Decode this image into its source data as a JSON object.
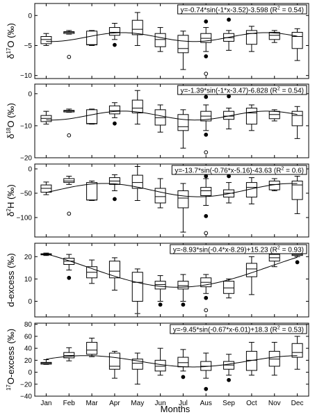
{
  "chart_data": [
    {
      "type": "box",
      "ylabel_pre": "δ",
      "ylabel_sup": "17",
      "ylabel_post": "O (‰)",
      "ylim": [
        -10.5,
        2
      ],
      "yticks": [
        0,
        -5,
        -10
      ],
      "equation": "y=-0.74*sin(-1*x-3.52)-3.598 (R",
      "equation_r2": "= 0.54)",
      "fit": {
        "a": -0.74,
        "b": -1,
        "c": -3.52,
        "d": -3.598
      },
      "boxes": [
        {
          "month": "Jan",
          "whislo": -5.0,
          "q1": -4.7,
          "med": -4.0,
          "q3": -3.5,
          "whishi": -3.0
        },
        {
          "month": "Feb",
          "whislo": -3.1,
          "q1": -3.0,
          "med": -2.8,
          "q3": -2.7,
          "whishi": -2.5
        },
        {
          "month": "Mar",
          "whislo": -5.0,
          "q1": -4.9,
          "med": -4.85,
          "q3": -2.6,
          "whishi": -2.5
        },
        {
          "month": "Apr",
          "whislo": -4.0,
          "q1": -3.3,
          "med": -2.8,
          "q3": -2.0,
          "whishi": -1.3
        },
        {
          "month": "May",
          "whislo": -5.0,
          "q1": -3.2,
          "med": -2.3,
          "q3": -0.8,
          "whishi": 0.5
        },
        {
          "month": "Jun",
          "whislo": -6.0,
          "q1": -5.2,
          "med": -4.0,
          "q3": -3.0,
          "whishi": -2.0
        },
        {
          "month": "Jul",
          "whislo": -9.0,
          "q1": -6.2,
          "med": -5.5,
          "q3": -3.3,
          "whishi": -2.6
        },
        {
          "month": "Aus",
          "whislo": -6.0,
          "q1": -4.5,
          "med": -3.8,
          "q3": -3.0,
          "whishi": -2.0
        },
        {
          "month": "Sep",
          "whislo": -5.8,
          "q1": -4.3,
          "med": -3.7,
          "q3": -3.0,
          "whishi": -2.5
        },
        {
          "month": "Oct",
          "whislo": -6.0,
          "q1": -4.8,
          "med": -3.0,
          "q3": -2.5,
          "whishi": -1.8
        },
        {
          "month": "Nov",
          "whislo": -4.5,
          "q1": -4.0,
          "med": -3.3,
          "q3": -2.8,
          "whishi": -2.5
        },
        {
          "month": "Dec",
          "whislo": -7.5,
          "q1": -5.5,
          "med": -3.5,
          "q3": -2.8,
          "whishi": -2.2
        }
      ],
      "outliers": [
        {
          "month": "Feb",
          "value": -6.9,
          "filled": false
        },
        {
          "month": "Apr",
          "value": -4.9,
          "filled": true
        },
        {
          "month": "Aus",
          "value": -1.0,
          "filled": true
        },
        {
          "month": "Aus",
          "value": -6.8,
          "filled": true
        },
        {
          "month": "Aus",
          "value": -9.7,
          "filled": false
        },
        {
          "month": "Sep",
          "value": -0.7,
          "filled": true
        }
      ]
    },
    {
      "type": "box",
      "ylabel_pre": "δ",
      "ylabel_sup": "18",
      "ylabel_post": "O (‰)",
      "ylim": [
        -20,
        3
      ],
      "yticks": [
        0,
        -10,
        -20
      ],
      "equation": "y=-1.39*sin(-1*x-3.47)-6.828 (R",
      "equation_r2": "= 0.54)",
      "fit": {
        "a": -1.39,
        "b": -1,
        "c": -3.47,
        "d": -6.828
      },
      "boxes": [
        {
          "month": "Jan",
          "whislo": -9.5,
          "q1": -8.7,
          "med": -7.7,
          "q3": -6.8,
          "whishi": -5.5
        },
        {
          "month": "Feb",
          "whislo": -5.8,
          "q1": -5.7,
          "med": -5.4,
          "q3": -5.2,
          "whishi": -4.8
        },
        {
          "month": "Mar",
          "whislo": -9.5,
          "q1": -9.4,
          "med": -9.3,
          "q3": -5.0,
          "whishi": -4.8
        },
        {
          "month": "Apr",
          "whislo": -7.5,
          "q1": -6.3,
          "med": -5.3,
          "q3": -3.8,
          "whishi": -2.8
        },
        {
          "month": "May",
          "whislo": -9.5,
          "q1": -6.0,
          "med": -4.5,
          "q3": -2.0,
          "whishi": 1.0
        },
        {
          "month": "Jun",
          "whislo": -12.0,
          "q1": -9.8,
          "med": -7.5,
          "q3": -5.0,
          "whishi": -3.5
        },
        {
          "month": "Jul",
          "whislo": -17.0,
          "q1": -11.5,
          "med": -10.3,
          "q3": -6.5,
          "whishi": -5.0
        },
        {
          "month": "Aus",
          "whislo": -11.5,
          "q1": -8.5,
          "med": -7.0,
          "q3": -5.5,
          "whishi": -3.5
        },
        {
          "month": "Sep",
          "whislo": -11.0,
          "q1": -8.0,
          "med": -7.0,
          "q3": -5.5,
          "whishi": -4.5
        },
        {
          "month": "Oct",
          "whislo": -11.5,
          "q1": -9.5,
          "med": -6.0,
          "q3": -4.5,
          "whishi": -3.5
        },
        {
          "month": "Nov",
          "whislo": -8.5,
          "q1": -7.8,
          "med": -6.5,
          "q3": -5.5,
          "whishi": -5.0
        },
        {
          "month": "Dec",
          "whislo": -14.0,
          "q1": -10.0,
          "med": -6.8,
          "q3": -5.5,
          "whishi": -4.0
        }
      ],
      "outliers": [
        {
          "month": "Feb",
          "value": -13.0,
          "filled": false
        },
        {
          "month": "Apr",
          "value": -9.3,
          "filled": true
        },
        {
          "month": "Aus",
          "value": -1.0,
          "filled": true
        },
        {
          "month": "Aus",
          "value": -12.8,
          "filled": true
        },
        {
          "month": "Aus",
          "value": -18.3,
          "filled": false
        },
        {
          "month": "Sep",
          "value": -0.8,
          "filled": true
        }
      ]
    },
    {
      "type": "box",
      "ylabel_pre": "δ",
      "ylabel_sup": "2",
      "ylabel_post": "H (‰)",
      "ylim": [
        -140,
        10
      ],
      "yticks": [
        0,
        -50,
        -100
      ],
      "equation": "y=-13.7*sin(-0.76*x-5.16)-43.63 (R",
      "equation_r2": "= 0.6)",
      "fit": {
        "a": -13.7,
        "b": -0.76,
        "c": -5.16,
        "d": -43.63
      },
      "boxes": [
        {
          "month": "Jan",
          "whislo": -53.0,
          "q1": -48.0,
          "med": -40.0,
          "q3": -33.0,
          "whishi": -27.0
        },
        {
          "month": "Feb",
          "whislo": -32.0,
          "q1": -28.0,
          "med": -25.0,
          "q3": -20.0,
          "whishi": -15.0
        },
        {
          "month": "Mar",
          "whislo": -65.0,
          "q1": -64.0,
          "med": -64.0,
          "q3": -28.0,
          "whishi": -25.0
        },
        {
          "month": "Apr",
          "whislo": -45.0,
          "q1": -32.0,
          "med": -25.0,
          "q3": -18.0,
          "whishi": -12.0
        },
        {
          "month": "May",
          "whislo": -65.0,
          "q1": -40.0,
          "med": -28.0,
          "q3": -13.0,
          "whishi": 5.0
        },
        {
          "month": "Jun",
          "whislo": -80.0,
          "q1": -70.0,
          "med": -57.0,
          "q3": -40.0,
          "whishi": -20.0
        },
        {
          "month": "Jul",
          "whislo": -130.0,
          "q1": -80.0,
          "med": -60.0,
          "q3": -45.0,
          "whishi": -30.0
        },
        {
          "month": "Aus",
          "whislo": -75.0,
          "q1": -55.0,
          "med": -45.0,
          "q3": -38.0,
          "whishi": -20.0
        },
        {
          "month": "Sep",
          "whislo": -70.0,
          "q1": -58.0,
          "med": -50.0,
          "q3": -43.0,
          "whishi": -28.0
        },
        {
          "month": "Oct",
          "whislo": -72.0,
          "q1": -58.0,
          "med": -38.0,
          "q3": -28.0,
          "whishi": -18.0
        },
        {
          "month": "Nov",
          "whislo": -45.0,
          "q1": -43.0,
          "med": -32.0,
          "q3": -25.0,
          "whishi": -20.0
        },
        {
          "month": "Dec",
          "whislo": -92.0,
          "q1": -63.0,
          "med": -33.0,
          "q3": -25.0,
          "whishi": -15.0
        }
      ],
      "outliers": [
        {
          "month": "Feb",
          "value": -92.0,
          "filled": false
        },
        {
          "month": "Apr",
          "value": -62.0,
          "filled": true
        },
        {
          "month": "Aus",
          "value": -15.0,
          "filled": true
        },
        {
          "month": "Aus",
          "value": -97.0,
          "filled": true
        },
        {
          "month": "Aus",
          "value": -132.0,
          "filled": false
        },
        {
          "month": "Sep",
          "value": -15.0,
          "filled": true
        }
      ]
    },
    {
      "type": "box",
      "ylabel_pre": "d-excess (‰)",
      "ylabel_sup": "",
      "ylabel_post": "",
      "ylim": [
        -7,
        26
      ],
      "yticks": [
        20,
        10,
        0
      ],
      "equation": "y=-8.93*sin(-0.4*x-8.29)+15.23 (R",
      "equation_r2": "= 0.93)",
      "fit": {
        "a": -8.93,
        "b": -0.4,
        "c": -8.29,
        "d": 15.23
      },
      "boxes": [
        {
          "month": "Jan",
          "whislo": 20.5,
          "q1": 20.8,
          "med": 21.0,
          "q3": 21.3,
          "whishi": 21.6
        },
        {
          "month": "Feb",
          "whislo": 14.0,
          "q1": 16.5,
          "med": 18.0,
          "q3": 19.3,
          "whishi": 21.0
        },
        {
          "month": "Mar",
          "whislo": 8.0,
          "q1": 10.5,
          "med": 13.0,
          "q3": 15.5,
          "whishi": 18.5
        },
        {
          "month": "Apr",
          "whislo": 5.0,
          "q1": 10.5,
          "med": 13.5,
          "q3": 18.0,
          "whishi": 19.5
        },
        {
          "month": "May",
          "whislo": -5.5,
          "q1": 0.0,
          "med": 8.5,
          "q3": 13.0,
          "whishi": 14.5
        },
        {
          "month": "Jun",
          "whislo": 0.0,
          "q1": 5.5,
          "med": 7.5,
          "q3": 9.0,
          "whishi": 11.5
        },
        {
          "month": "Jul",
          "whislo": 0.0,
          "q1": 5.5,
          "med": 7.0,
          "q3": 9.0,
          "whishi": 12.0
        },
        {
          "month": "Aus",
          "whislo": 3.5,
          "q1": 6.5,
          "med": 8.5,
          "q3": 10.5,
          "whishi": 12.0
        },
        {
          "month": "Sep",
          "whislo": 1.5,
          "q1": 3.5,
          "med": 6.0,
          "q3": 9.0,
          "whishi": 10.0
        },
        {
          "month": "Oct",
          "whislo": 3.0,
          "q1": 11.0,
          "med": 14.5,
          "q3": 17.0,
          "whishi": 20.0
        },
        {
          "month": "Nov",
          "whislo": 15.5,
          "q1": 18.0,
          "med": 19.5,
          "q3": 21.0,
          "whishi": 22.0
        },
        {
          "month": "Dec",
          "whislo": 20.0,
          "q1": 20.5,
          "med": 21.0,
          "q3": 21.5,
          "whishi": 22.0
        }
      ],
      "outliers": [
        {
          "month": "Feb",
          "value": 10.5,
          "filled": true
        },
        {
          "month": "Jun",
          "value": -1.5,
          "filled": true
        },
        {
          "month": "Jul",
          "value": -1.5,
          "filled": true
        },
        {
          "month": "Aus",
          "value": 1.5,
          "filled": true
        },
        {
          "month": "Aus",
          "value": -4.0,
          "filled": false
        },
        {
          "month": "Dec",
          "value": 17.5,
          "filled": true
        }
      ]
    },
    {
      "type": "box",
      "ylabel_pre": "",
      "ylabel_sup": "17",
      "ylabel_post": "O-excess (‰)",
      "ylim": [
        -40,
        82
      ],
      "yticks": [
        80,
        60,
        40,
        20,
        0,
        -20,
        -40
      ],
      "equation": "y=-9.45*sin(-0.67*x-6.01)+18.3 (R",
      "equation_r2": "= 0.53)",
      "fit": {
        "a": -9.45,
        "b": -0.67,
        "c": -6.01,
        "d": 18.3
      },
      "boxes": [
        {
          "month": "Jan",
          "whislo": 13.0,
          "q1": 13.5,
          "med": 15.0,
          "q3": 16.5,
          "whishi": 21.0
        },
        {
          "month": "Feb",
          "whislo": 19.0,
          "q1": 24.0,
          "med": 28.0,
          "q3": 33.0,
          "whishi": 41.0
        },
        {
          "month": "Mar",
          "whislo": 26.0,
          "q1": 30.0,
          "med": 37.0,
          "q3": 50.0,
          "whishi": 57.0
        },
        {
          "month": "Apr",
          "whislo": -10.0,
          "q1": 5.0,
          "med": 10.0,
          "q3": 32.0,
          "whishi": 35.0
        },
        {
          "month": "May",
          "whislo": -20.0,
          "q1": 5.0,
          "med": 15.0,
          "q3": 22.0,
          "whishi": 32.0
        },
        {
          "month": "Jun",
          "whislo": -5.0,
          "q1": 2.0,
          "med": 10.0,
          "q3": 20.0,
          "whishi": 40.0
        },
        {
          "month": "Jul",
          "whislo": 2.0,
          "q1": 9.0,
          "med": 16.0,
          "q3": 25.0,
          "whishi": 38.0
        },
        {
          "month": "Aus",
          "whislo": -10.0,
          "q1": 3.0,
          "med": 10.0,
          "q3": 18.0,
          "whishi": 32.0
        },
        {
          "month": "Sep",
          "whislo": -5.0,
          "q1": 5.0,
          "med": 12.0,
          "q3": 18.0,
          "whishi": 30.0
        },
        {
          "month": "Oct",
          "whislo": -5.0,
          "q1": 3.0,
          "med": 20.0,
          "q3": 35.0,
          "whishi": 50.0
        },
        {
          "month": "Nov",
          "whislo": -5.0,
          "q1": 10.0,
          "med": 22.0,
          "q3": 35.0,
          "whishi": 50.0
        },
        {
          "month": "Dec",
          "whislo": 5.0,
          "q1": 25.0,
          "med": 33.0,
          "q3": 48.0,
          "whishi": 60.0
        }
      ],
      "outliers": [
        {
          "month": "Jul",
          "value": -8.0,
          "filled": true
        },
        {
          "month": "Aus",
          "value": -28.0,
          "filled": true
        },
        {
          "month": "Sep",
          "value": -13.0,
          "filled": true
        }
      ]
    }
  ],
  "shared": {
    "months": [
      "Jan",
      "Feb",
      "Mar",
      "Apr",
      "May",
      "Jun",
      "Jul",
      "Aus",
      "Sep",
      "Oct",
      "Nov",
      "Dec"
    ],
    "xlabel": "Months",
    "r2_sup": "2"
  }
}
